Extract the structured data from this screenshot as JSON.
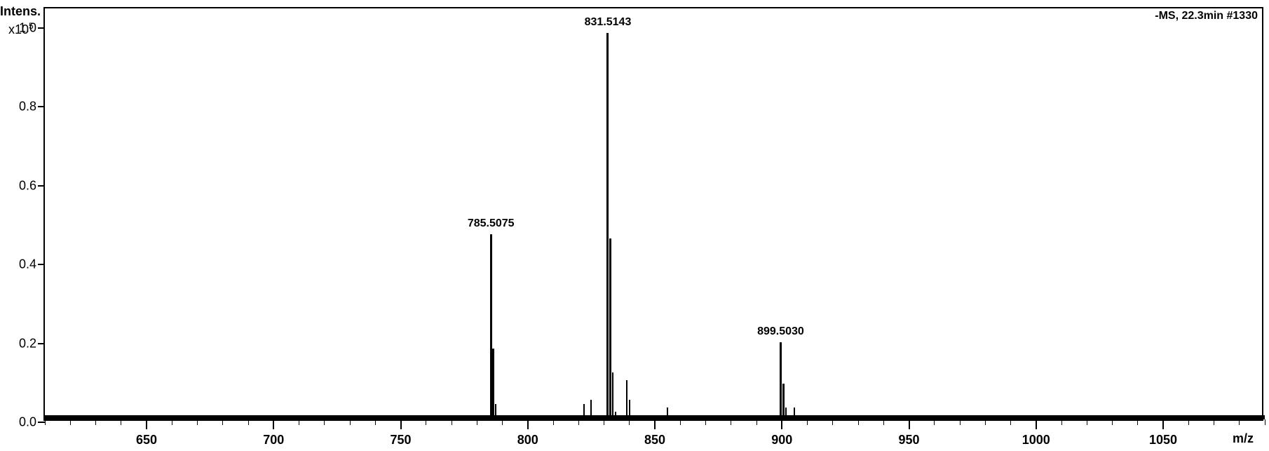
{
  "chart": {
    "type": "mass-spectrum",
    "y_title": "Intens.",
    "y_scale_prefix": "x10",
    "y_scale_exp": "5",
    "x_title": "m/z",
    "annotation_tr": "-MS, 22.3min #1330",
    "background_color": "#ffffff",
    "border_color": "#000000",
    "peak_color": "#000000",
    "text_color": "#000000",
    "title_fontsize": 18,
    "label_fontsize": 18,
    "peak_label_fontsize": 16,
    "xlim": [
      610,
      1090
    ],
    "ylim": [
      0.0,
      1.05
    ],
    "y_ticks": [
      0.0,
      0.2,
      0.4,
      0.6,
      0.8,
      1.0
    ],
    "x_major_ticks": [
      650,
      700,
      750,
      800,
      850,
      900,
      950,
      1000,
      1050
    ],
    "x_minor_step": 10,
    "peaks": [
      {
        "mz": 785.5075,
        "intensity": 0.47,
        "label": "785.5075",
        "width": 3
      },
      {
        "mz": 786.5,
        "intensity": 0.18,
        "label": "",
        "width": 3
      },
      {
        "mz": 787.5,
        "intensity": 0.04,
        "label": "",
        "width": 2
      },
      {
        "mz": 822,
        "intensity": 0.04,
        "label": "",
        "width": 2
      },
      {
        "mz": 825,
        "intensity": 0.05,
        "label": "",
        "width": 2
      },
      {
        "mz": 831.5143,
        "intensity": 0.98,
        "label": "831.5143",
        "width": 3
      },
      {
        "mz": 832.5,
        "intensity": 0.46,
        "label": "",
        "width": 3
      },
      {
        "mz": 833.5,
        "intensity": 0.12,
        "label": "",
        "width": 2
      },
      {
        "mz": 834.5,
        "intensity": 0.02,
        "label": "",
        "width": 2
      },
      {
        "mz": 839,
        "intensity": 0.1,
        "label": "",
        "width": 2
      },
      {
        "mz": 840,
        "intensity": 0.05,
        "label": "",
        "width": 2
      },
      {
        "mz": 855,
        "intensity": 0.03,
        "label": "",
        "width": 2
      },
      {
        "mz": 899.503,
        "intensity": 0.195,
        "label": "899.5030",
        "width": 3
      },
      {
        "mz": 900.5,
        "intensity": 0.09,
        "label": "",
        "width": 3
      },
      {
        "mz": 901.5,
        "intensity": 0.03,
        "label": "",
        "width": 2
      },
      {
        "mz": 905,
        "intensity": 0.03,
        "label": "",
        "width": 2
      }
    ],
    "baseline_noise": 0.01
  }
}
